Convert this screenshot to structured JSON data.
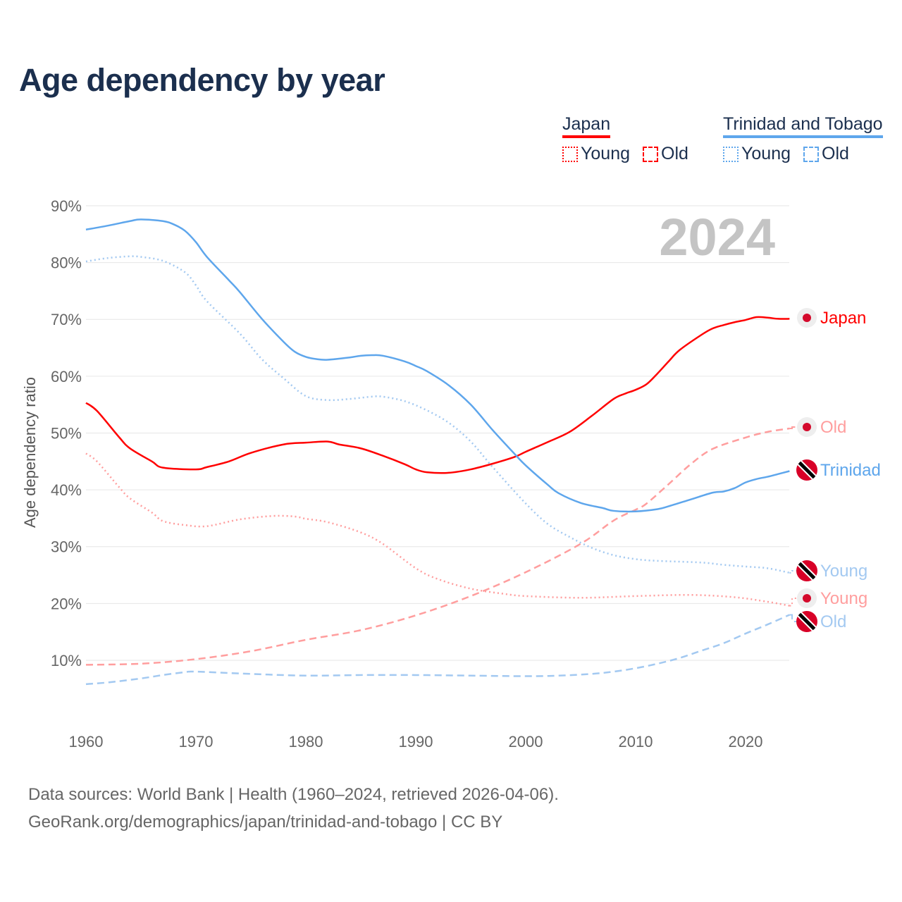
{
  "title": "Age dependency by year",
  "legend": {
    "groups": [
      {
        "country": "Japan",
        "color": "#ff0000",
        "items": [
          {
            "label": "Young",
            "style": "dotted"
          },
          {
            "label": "Old",
            "style": "dashed"
          }
        ]
      },
      {
        "country": "Trinidad and Tobago",
        "color": "#5ea6ec",
        "items": [
          {
            "label": "Young",
            "style": "dotted"
          },
          {
            "label": "Old",
            "style": "dashed"
          }
        ]
      }
    ]
  },
  "footer": {
    "line1": "Data sources: World Bank | Health (1960–2024, retrieved 2026-04-06).",
    "line2": "GeoRank.org/demographics/japan/trinidad-and-tobago | CC BY"
  },
  "chart_data": {
    "type": "line",
    "title": "Age dependency by year",
    "year_watermark": "2024",
    "xlabel": "",
    "ylabel": "Age dependency ratio",
    "xlim": [
      1960,
      2024
    ],
    "ylim": [
      0,
      90
    ],
    "xticks": [
      "1960",
      "1970",
      "1980",
      "1990",
      "2000",
      "2010",
      "2020"
    ],
    "yticks": [
      "10%",
      "20%",
      "30%",
      "40%",
      "50%",
      "60%",
      "70%",
      "80%",
      "90%"
    ],
    "grid": true,
    "series": [
      {
        "name": "Japan",
        "end_label": "Japan",
        "flag": "japan",
        "color": "#ff0000",
        "style": "solid",
        "x": [
          1960,
          1961,
          1963,
          1964,
          1966,
          1967,
          1970,
          1971,
          1973,
          1975,
          1978,
          1980,
          1982,
          1983,
          1985,
          1987,
          1989,
          1990,
          1991,
          1993,
          1995,
          1997,
          1999,
          2000,
          2002,
          2004,
          2006,
          2008,
          2009,
          2010,
          2011,
          2012,
          2013,
          2014,
          2016,
          2017,
          2018,
          2019,
          2020,
          2021,
          2022,
          2023,
          2024
        ],
        "y": [
          55.3,
          53.9,
          49.3,
          47.3,
          45,
          43.9,
          43.6,
          44,
          45,
          46.5,
          48,
          48.3,
          48.5,
          48,
          47.3,
          46,
          44.5,
          43.6,
          43.1,
          43,
          43.6,
          44.6,
          45.8,
          46.7,
          48.4,
          50.2,
          53,
          56,
          56.9,
          57.6,
          58.6,
          60.5,
          62.6,
          64.6,
          67.3,
          68.4,
          69,
          69.5,
          69.9,
          70.4,
          70.3,
          70.1,
          70.1
        ]
      },
      {
        "name": "Japan Old",
        "end_label": "Old",
        "flag": "japan",
        "color": "#ff9e9e",
        "style": "dashed",
        "x": [
          1960,
          1965,
          1970,
          1975,
          1980,
          1985,
          1990,
          1995,
          2000,
          2005,
          2008,
          2010,
          2011,
          2013,
          2015,
          2017,
          2020,
          2022,
          2024
        ],
        "y": [
          9.2,
          9.4,
          10.2,
          11.6,
          13.6,
          15.3,
          17.9,
          21.3,
          25.5,
          30.5,
          34.6,
          36.5,
          37.6,
          41,
          44.5,
          47.2,
          49.2,
          50.2,
          50.8
        ]
      },
      {
        "name": "Trinidad and Tobago",
        "end_label": "Trinidad",
        "flag": "trinidad",
        "color": "#5ea6ec",
        "style": "solid",
        "x": [
          1960,
          1962,
          1964,
          1965,
          1967,
          1968,
          1969,
          1970,
          1971,
          1973,
          1974,
          1976,
          1978,
          1979,
          1980,
          1981,
          1982,
          1984,
          1985,
          1986,
          1987,
          1989,
          1990,
          1991,
          1993,
          1995,
          1997,
          1999,
          2000,
          2002,
          2003,
          2005,
          2007,
          2008,
          2010,
          2012,
          2013,
          2015,
          2017,
          2018,
          2019,
          2020,
          2021,
          2022,
          2023,
          2024
        ],
        "y": [
          85.8,
          86.5,
          87.3,
          87.6,
          87.3,
          86.7,
          85.6,
          83.6,
          81,
          76.9,
          74.8,
          70.1,
          66,
          64.3,
          63.4,
          63,
          62.9,
          63.3,
          63.6,
          63.7,
          63.6,
          62.6,
          61.8,
          60.9,
          58.4,
          55,
          50.5,
          46.3,
          44.3,
          40.9,
          39.4,
          37.7,
          36.8,
          36.3,
          36.2,
          36.6,
          37.1,
          38.3,
          39.5,
          39.7,
          40.3,
          41.3,
          41.9,
          42.3,
          42.8,
          43.3
        ]
      },
      {
        "name": "Trinidad and Tobago Young",
        "end_label": "Young",
        "flag": "trinidad",
        "color": "#a3c9f1",
        "style": "dotted",
        "x": [
          1960,
          1962,
          1964,
          1965,
          1967,
          1969,
          1970,
          1971,
          1974,
          1976,
          1978,
          1980,
          1982,
          1984,
          1986,
          1987,
          1989,
          1991,
          1993,
          1995,
          1997,
          2000,
          2002,
          2004,
          2006,
          2008,
          2010,
          2012,
          2016,
          2018,
          2020,
          2022,
          2024
        ],
        "y": [
          80.2,
          80.8,
          81.1,
          81,
          80.3,
          78.3,
          76,
          73.2,
          67.5,
          63,
          59.6,
          56.5,
          55.8,
          56,
          56.4,
          56.4,
          55.6,
          54,
          51.8,
          48.5,
          44,
          37.6,
          34,
          31.7,
          29.8,
          28.5,
          27.8,
          27.5,
          27.2,
          26.8,
          26.5,
          26.2,
          25.4
        ]
      },
      {
        "name": "Japan Young",
        "end_label": "Young",
        "flag": "japan",
        "color": "#ff9e9e",
        "style": "dotted",
        "x": [
          1960,
          1961,
          1963,
          1964,
          1966,
          1967,
          1969,
          1971,
          1974,
          1977,
          1979,
          1980,
          1982,
          1985,
          1987,
          1990,
          1992,
          1995,
          1998,
          2000,
          2005,
          2010,
          2015,
          2019,
          2022,
          2024
        ],
        "y": [
          46.4,
          45,
          40.5,
          38.5,
          36,
          34.5,
          33.8,
          33.6,
          34.8,
          35.4,
          35.3,
          34.9,
          34.3,
          32.5,
          30.5,
          26.2,
          24.3,
          22.6,
          21.7,
          21.3,
          21,
          21.3,
          21.5,
          21.1,
          20.3,
          19.6
        ]
      },
      {
        "name": "Trinidad and Tobago Old",
        "end_label": "Old",
        "flag": "trinidad",
        "color": "#a3c9f1",
        "style": "dashed",
        "x": [
          1960,
          1962,
          1965,
          1967,
          1969,
          1970,
          1975,
          1980,
          1985,
          1990,
          1995,
          2000,
          2003,
          2006,
          2008,
          2010,
          2012,
          2014,
          2016,
          2018,
          2020,
          2022,
          2024
        ],
        "y": [
          5.8,
          6.1,
          6.8,
          7.4,
          7.9,
          8,
          7.6,
          7.3,
          7.4,
          7.4,
          7.3,
          7.2,
          7.3,
          7.6,
          8,
          8.6,
          9.4,
          10.4,
          11.7,
          13,
          14.7,
          16.3,
          18
        ]
      }
    ]
  }
}
